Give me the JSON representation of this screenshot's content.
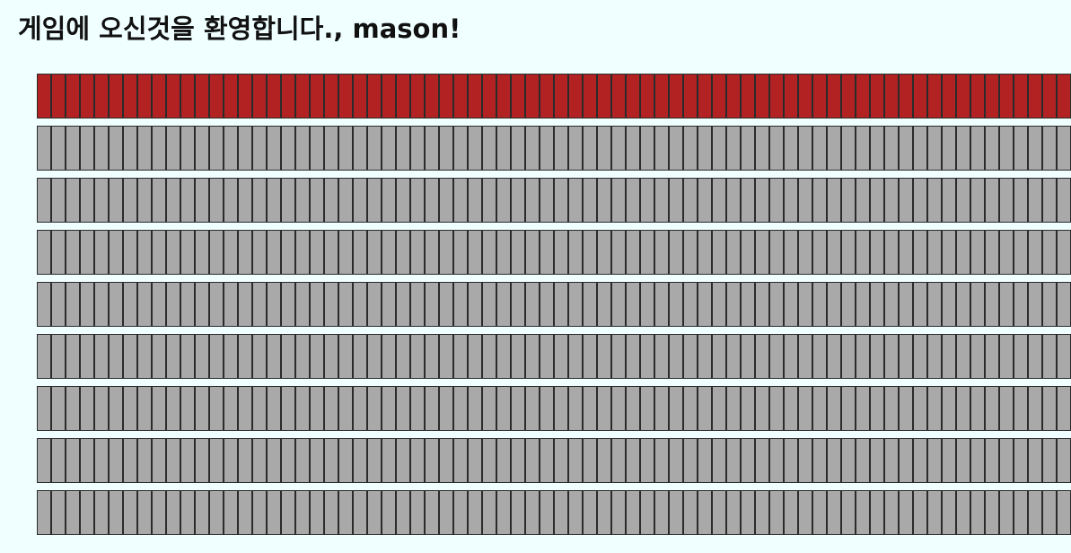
{
  "greeting": "게임에 오신것을 환영합니다., mason!",
  "board": {
    "rows": 9,
    "tiles_per_row": 72,
    "active_row": 0,
    "active_color": "#b22222",
    "inactive_color": "#a9a9a9",
    "border_color": "#2b2b2b"
  }
}
